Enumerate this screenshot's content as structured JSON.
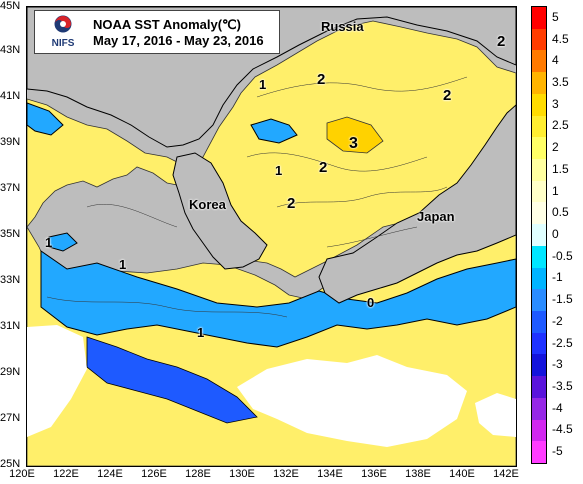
{
  "map": {
    "title": "NOAA SST Anomaly(℃)",
    "date_range": "May 17, 2016 - May 23, 2016",
    "logo_text": "NIFS",
    "logo_icon": "nifs-logo-icon",
    "land_color": "#bdbdbd",
    "places": [
      {
        "name": "Russia"
      },
      {
        "name": "Korea"
      },
      {
        "name": "Japan"
      }
    ],
    "lat_labels": [
      "45N",
      "43N",
      "41N",
      "39N",
      "37N",
      "35N",
      "33N",
      "31N",
      "29N",
      "27N",
      "25N"
    ],
    "lon_labels": [
      "120E",
      "122E",
      "124E",
      "126E",
      "128E",
      "130E",
      "132E",
      "134E",
      "136E",
      "138E",
      "140E",
      "142E"
    ],
    "contour_labels": [
      "1",
      "2",
      "2",
      "3",
      "2",
      "1",
      "1",
      "2",
      "1",
      "0",
      "1",
      "1",
      "2"
    ]
  },
  "legend": {
    "labels": [
      "5",
      "4.5",
      "4",
      "3.5",
      "3",
      "2.5",
      "2",
      "1.5",
      "1",
      "0.5",
      "0",
      "-0.5",
      "-1",
      "-1.5",
      "-2",
      "-2.5",
      "-3",
      "-3.5",
      "-4",
      "-4.5",
      "-5"
    ],
    "colors": [
      "#ff0000",
      "#ff3c00",
      "#ff7a00",
      "#ffb400",
      "#ffdc00",
      "#ffee30",
      "#ffff66",
      "#ffffa0",
      "#ffffc8",
      "#ffffe6",
      "#e0ffff",
      "#00e6ff",
      "#00b4ff",
      "#2a8cff",
      "#1e5aff",
      "#1e32ff",
      "#1414dc",
      "#5a14dc",
      "#9628e6",
      "#d228f0",
      "#ff3cff"
    ]
  }
}
